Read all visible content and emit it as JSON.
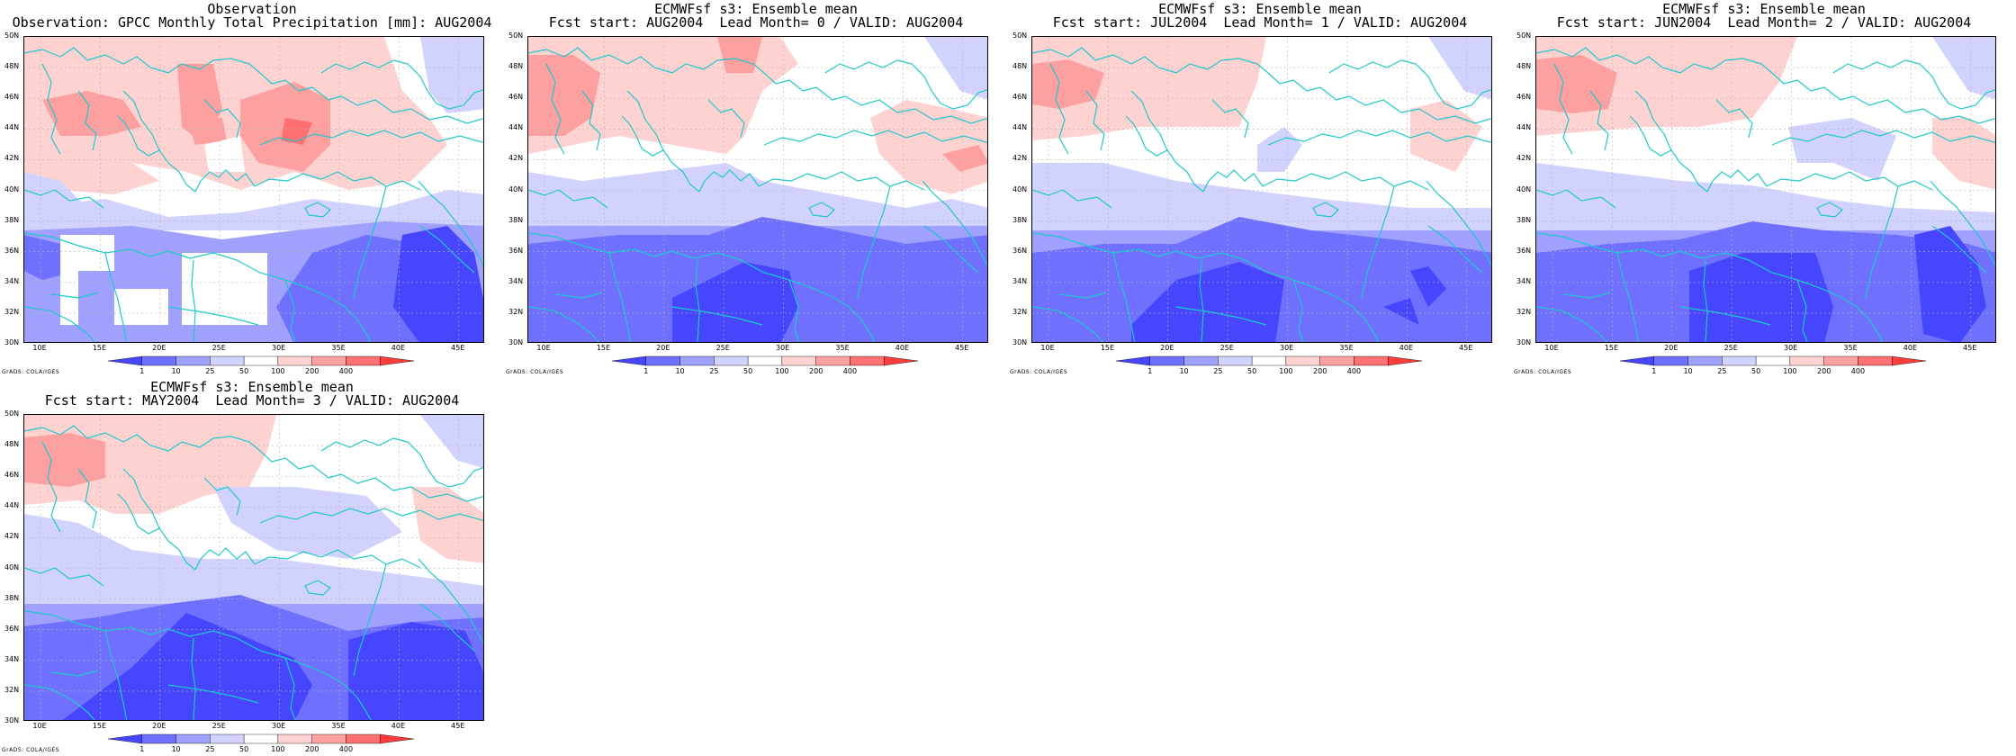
{
  "figure": {
    "panels": [
      {
        "id": "obs",
        "title_line1": "Observation",
        "title_line2": "Observation: GPCC Monthly Total Precipitation [mm]: AUG2004",
        "credit": "GrADS: COLA/IGES"
      },
      {
        "id": "lead0",
        "title_line1": "ECMWFsf s3: Ensemble mean",
        "title_line2": "Fcst start: AUG2004  Lead Month= 0 / VALID: AUG2004",
        "credit": "GrADS: COLA/IGES"
      },
      {
        "id": "lead1",
        "title_line1": "ECMWFsf s3: Ensemble mean",
        "title_line2": "Fcst start: JUL2004  Lead Month= 1 / VALID: AUG2004",
        "credit": "GrADS: COLA/IGES"
      },
      {
        "id": "lead2",
        "title_line1": "ECMWFsf s3: Ensemble mean",
        "title_line2": "Fcst start: JUN2004  Lead Month= 2 / VALID: AUG2004",
        "credit": "GrADS: COLA/IGES"
      },
      {
        "id": "lead3",
        "title_line1": "ECMWFsf s3: Ensemble mean",
        "title_line2": "Fcst start: MAY2004  Lead Month= 3 / VALID: AUG2004",
        "credit": "GrADS: COLA/IGES"
      }
    ],
    "lat_ticks": [
      "50N",
      "48N",
      "46N",
      "44N",
      "42N",
      "40N",
      "38N",
      "36N",
      "34N",
      "32N",
      "30N"
    ],
    "lon_ticks": [
      "10E",
      "15E",
      "20E",
      "25E",
      "30E",
      "35E",
      "40E",
      "45E"
    ],
    "colorbar": {
      "labels": [
        "1",
        "10",
        "25",
        "50",
        "100",
        "200",
        "400"
      ],
      "colors": [
        "#4646ff",
        "#7070ff",
        "#a0a0ff",
        "#d2d2ff",
        "#ffffff",
        "#ffd2d2",
        "#ffa0a0",
        "#ff7070",
        "#ff3c3c"
      ]
    },
    "colors": {
      "coastline": "#1fc8c8",
      "grid": "#b4b4b4",
      "missing": "#ffffff"
    }
  }
}
